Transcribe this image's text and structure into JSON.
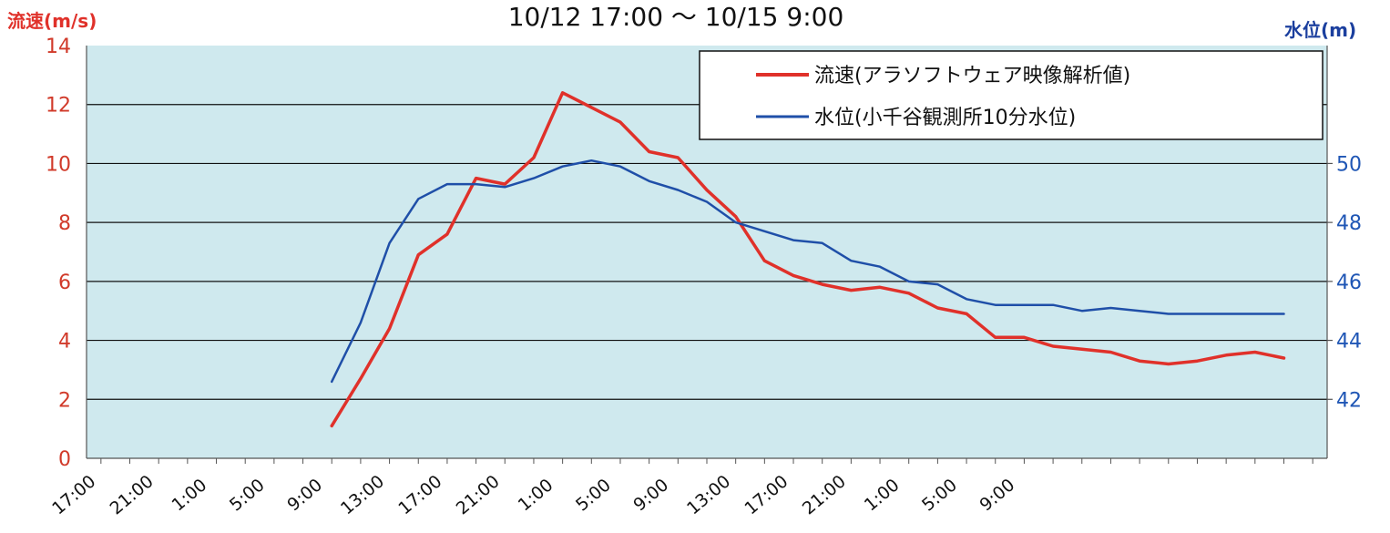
{
  "chart_data": {
    "type": "line",
    "title": "10/12 17:00 〜 10/15 9:00",
    "ylabel_left": "流速(m/s)",
    "ylabel_right": "水位(m)",
    "ylim_left": [
      0,
      14
    ],
    "yticks_left": [
      "0",
      "2",
      "4",
      "6",
      "8",
      "10",
      "12",
      "14"
    ],
    "ylim_right": [
      40,
      54
    ],
    "yticks_right": [
      "42",
      "44",
      "46",
      "48",
      "50"
    ],
    "x_ticks": [
      "17:00",
      "21:00",
      "1:00",
      "5:00",
      "9:00",
      "13:00",
      "17:00",
      "21:00",
      "1:00",
      "5:00",
      "9:00",
      "13:00",
      "17:00",
      "21:00",
      "1:00",
      "5:00",
      "9:00"
    ],
    "grid": true,
    "legend_position": "top-right",
    "series": [
      {
        "name": "流速(アラソフトウェア映像解析値)",
        "axis": "left",
        "color": "#e0312a",
        "x": [
          18,
          20,
          22,
          24,
          26,
          28,
          30,
          32,
          34,
          36,
          38,
          40,
          42,
          44,
          46,
          48,
          50,
          52,
          54,
          56,
          58,
          60,
          62,
          64,
          66,
          68,
          70,
          72,
          74,
          76,
          78,
          80,
          82,
          84
        ],
        "values": [
          1.1,
          2.7,
          4.4,
          6.9,
          7.6,
          9.5,
          9.3,
          10.2,
          12.4,
          11.9,
          11.4,
          10.4,
          10.2,
          9.1,
          8.2,
          6.7,
          6.2,
          5.9,
          5.7,
          5.8,
          5.6,
          5.1,
          4.9,
          4.1,
          4.1,
          3.8,
          3.7,
          3.6,
          3.3,
          3.2,
          3.3,
          3.5,
          3.6,
          3.4
        ]
      },
      {
        "name": "水位(小千谷観測所10分水位)",
        "axis": "right",
        "color": "#1f4fa8",
        "x": [
          18,
          20,
          22,
          24,
          26,
          28,
          30,
          32,
          34,
          36,
          38,
          40,
          42,
          44,
          46,
          48,
          50,
          52,
          54,
          56,
          58,
          60,
          62,
          64,
          66,
          68,
          70,
          72,
          74,
          76,
          78,
          80,
          82,
          84
        ],
        "values": [
          42.6,
          44.6,
          47.3,
          48.8,
          49.3,
          49.3,
          49.2,
          49.5,
          49.9,
          50.1,
          49.9,
          49.4,
          49.1,
          48.7,
          48.0,
          47.7,
          47.4,
          47.3,
          46.7,
          46.5,
          46.0,
          45.9,
          45.4,
          45.2,
          45.2,
          45.2,
          45.0,
          45.1,
          45.0,
          44.9,
          44.9,
          44.9,
          44.9,
          44.9
        ]
      }
    ]
  }
}
